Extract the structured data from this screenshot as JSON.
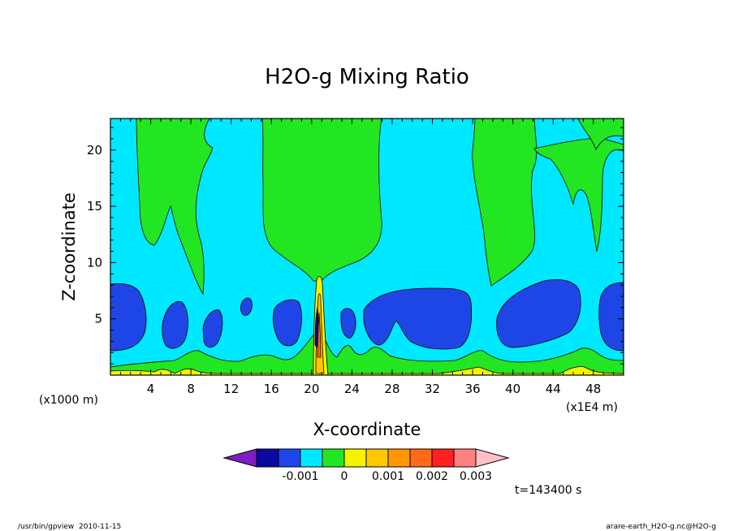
{
  "chart_data": {
    "type": "heatmap",
    "title": "H2O-g Mixing Ratio",
    "xlabel": "X-coordinate",
    "ylabel": "Z-coordinate",
    "x_unit_left": "(x1000 m)",
    "x_unit_right": "(x1E4 m)",
    "xlim": [
      0,
      51
    ],
    "ylim": [
      0,
      22.8
    ],
    "xticks": [
      4,
      8,
      12,
      16,
      20,
      24,
      28,
      32,
      36,
      40,
      44,
      48
    ],
    "yticks": [
      5,
      10,
      15,
      20
    ],
    "contour_levels": [
      {
        "name": "below",
        "color": "#7f1fbf"
      },
      {
        "name": "-0.0015",
        "color": "#0a0a9e"
      },
      {
        "name": "-0.001",
        "color": "#1e46e6"
      },
      {
        "name": "-0.0005",
        "color": "#00e8ff"
      },
      {
        "name": "0",
        "color": "#22e622"
      },
      {
        "name": "0.0005",
        "color": "#f4f400"
      },
      {
        "name": "0.001",
        "color": "#ffc800"
      },
      {
        "name": "0.0015",
        "color": "#ff9800"
      },
      {
        "name": "0.002",
        "color": "#ff6a1a"
      },
      {
        "name": "0.0025",
        "color": "#ff2020"
      },
      {
        "name": "0.003",
        "color": "#ff8080"
      },
      {
        "name": "above",
        "color": "#ffc0c8"
      }
    ],
    "colorbar_labels": [
      "-0.001",
      "0",
      "0.001",
      "0.002",
      "0.003"
    ],
    "time_label": "t=143400 s",
    "footer_left": "/usr/bin/gpview  2010-11-15",
    "footer_right": "arare-earth_H2O-g.nc@H2O-g",
    "grid": false
  }
}
